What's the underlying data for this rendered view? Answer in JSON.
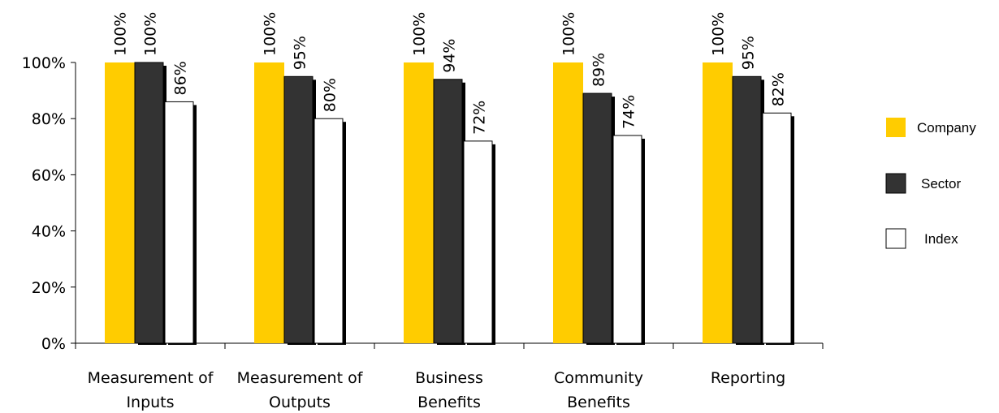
{
  "chart_data": {
    "type": "bar",
    "categories": [
      [
        "Measurement of",
        "Inputs"
      ],
      [
        "Measurement of",
        "Outputs"
      ],
      [
        "Business",
        "Benefits"
      ],
      [
        "Community",
        "Benefits"
      ],
      [
        "Reporting"
      ]
    ],
    "series": [
      {
        "name": "Company",
        "color": "#FFCC00",
        "values": [
          100,
          100,
          100,
          100,
          100
        ],
        "labels": [
          "100%",
          "100%",
          "100%",
          "100%",
          "100%"
        ]
      },
      {
        "name": "Sector",
        "color": "#333333",
        "values": [
          100,
          95,
          94,
          89,
          95
        ],
        "labels": [
          "100%",
          "95%",
          "94%",
          "89%",
          "95%"
        ]
      },
      {
        "name": "Index",
        "color": "#FFFFFF",
        "values": [
          86,
          80,
          72,
          74,
          82
        ],
        "labels": [
          "86%",
          "80%",
          "72%",
          "74%",
          "82%"
        ]
      }
    ],
    "ylim": [
      0,
      100
    ],
    "yticks": [
      "0%",
      "20%",
      "40%",
      "60%",
      "80%",
      "100%"
    ],
    "grid": false,
    "legend_position": "right",
    "title": "",
    "xlabel": "",
    "ylabel": ""
  }
}
